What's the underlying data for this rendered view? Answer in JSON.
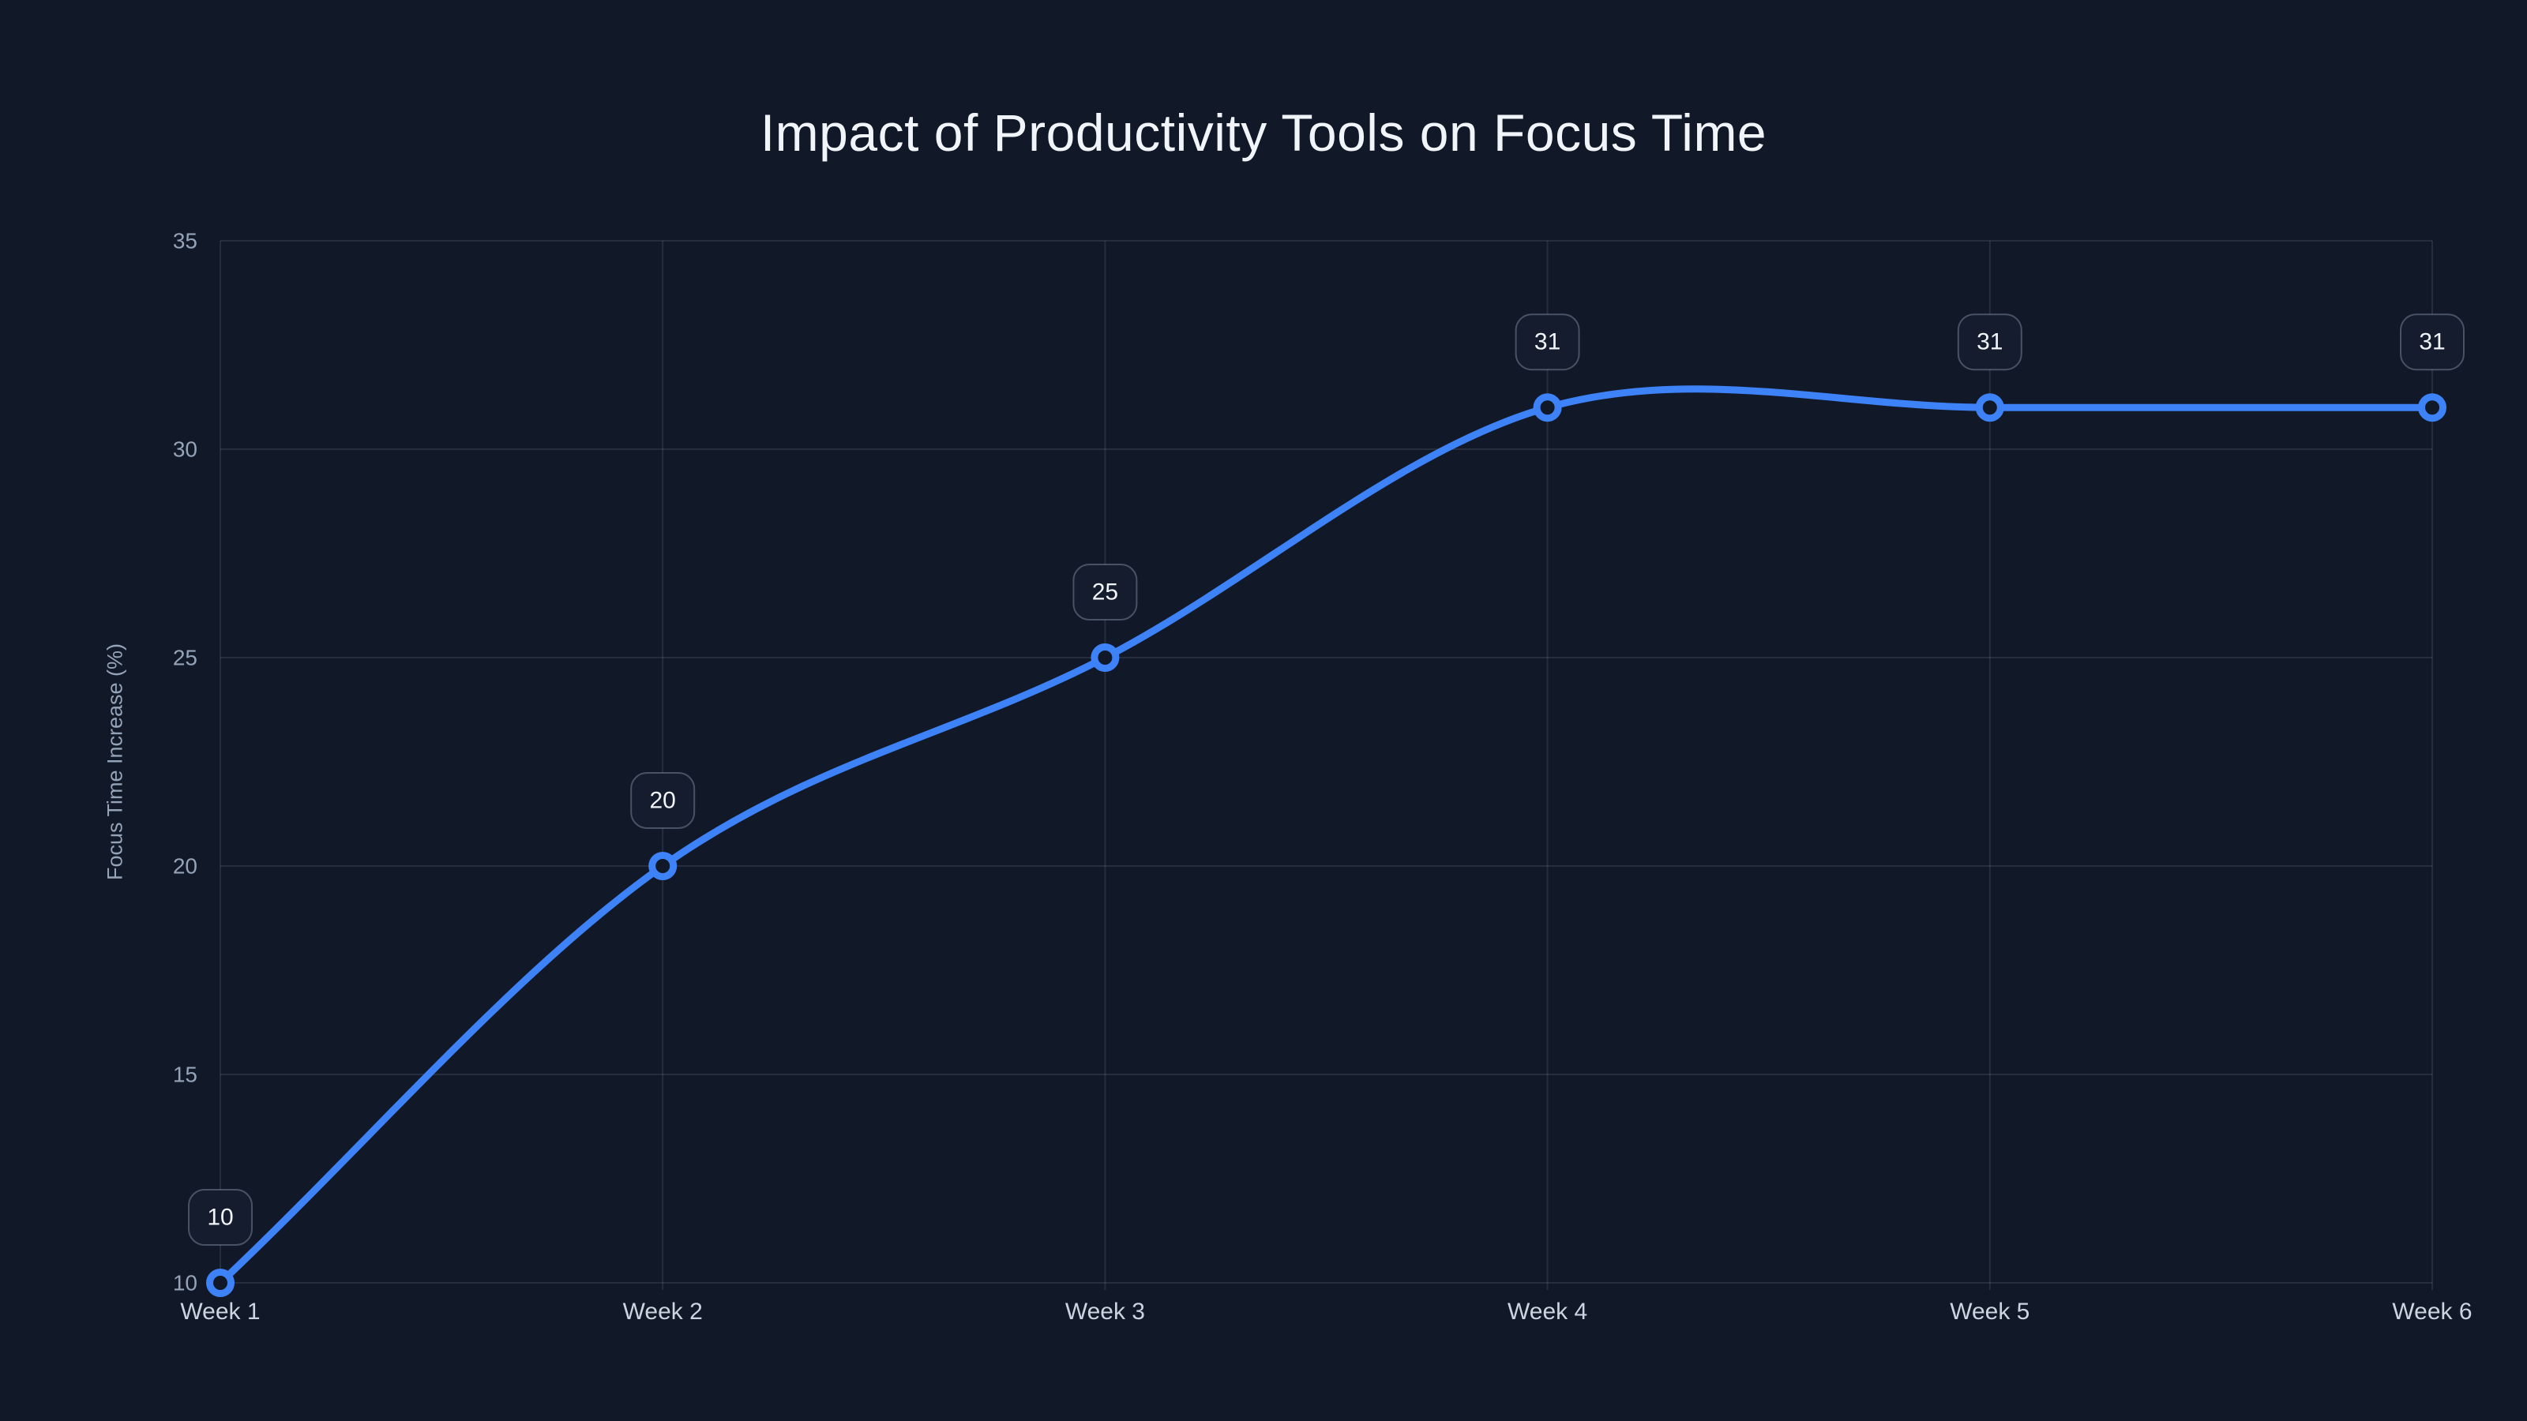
{
  "page": {
    "background_color": "#111827"
  },
  "chart_data": {
    "type": "line",
    "title": "Impact of Productivity Tools on Focus Time",
    "xlabel": "",
    "ylabel": "Focus Time Increase (%)",
    "categories": [
      "Week 1",
      "Week 2",
      "Week 3",
      "Week 4",
      "Week 5",
      "Week 6"
    ],
    "series": [
      {
        "name": "Focus Time Increase",
        "values": [
          10,
          20,
          25,
          31,
          31,
          31
        ]
      }
    ],
    "data_labels": [
      "10",
      "20",
      "25",
      "31",
      "31",
      "31"
    ],
    "ylim": [
      10,
      35
    ],
    "yticks": [
      10,
      15,
      20,
      25,
      30,
      35
    ],
    "grid": true,
    "legend": false,
    "smooth": true,
    "colors": {
      "line": "#3e82f7",
      "marker_stroke": "#3e82f7",
      "marker_fill": "#111827",
      "grid": "rgba(148,163,184,0.16)",
      "y_tick_text": "#94a3b8",
      "x_tick_text": "#cbd5e1",
      "title_text": "#f1f5f9",
      "label_box_fill": "#141c2e",
      "label_box_border": "rgba(148,163,184,0.42)",
      "label_text": "#f1f5f9"
    }
  }
}
